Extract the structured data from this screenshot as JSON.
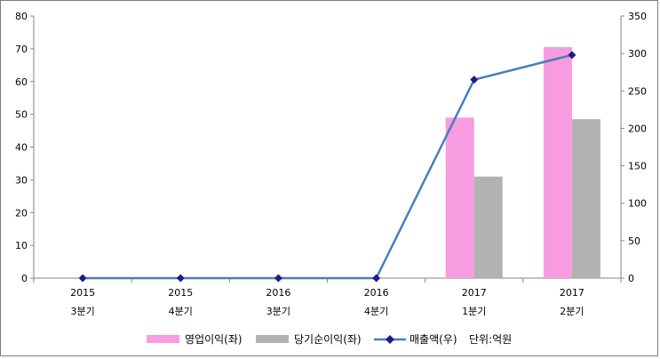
{
  "chart_data": {
    "type": "bar",
    "categories_year": [
      "2015",
      "2015",
      "2016",
      "2016",
      "2017",
      "2017"
    ],
    "categories_quarter": [
      "3분기",
      "4분기",
      "3분기",
      "4분기",
      "1분기",
      "2분기"
    ],
    "series": [
      {
        "name": "영업이익(좌)",
        "type": "bar",
        "axis": "left",
        "values": [
          0,
          0,
          0,
          0,
          49,
          70.5
        ]
      },
      {
        "name": "당기순이익(좌)",
        "type": "bar",
        "axis": "left",
        "values": [
          0,
          0,
          0,
          0,
          31,
          48.5
        ]
      },
      {
        "name": "매출액(우)",
        "type": "line",
        "axis": "right",
        "values": [
          0,
          0,
          0,
          0,
          265,
          298
        ]
      }
    ],
    "y_left": {
      "min": 0,
      "max": 80,
      "step": 10,
      "ticks": [
        "0",
        "10",
        "20",
        "30",
        "40",
        "50",
        "60",
        "70",
        "80"
      ]
    },
    "y_right": {
      "min": 0,
      "max": 350,
      "step": 50,
      "ticks": [
        "0",
        "50",
        "100",
        "150",
        "200",
        "250",
        "300",
        "350"
      ]
    },
    "unit_note": "단위:억원",
    "grid": false,
    "legend_position": "bottom",
    "colors": {
      "bar1": "#f79ce0",
      "bar2": "#b2b2b2",
      "line": "#4a7ebb",
      "marker": "#1f1a8c"
    }
  }
}
